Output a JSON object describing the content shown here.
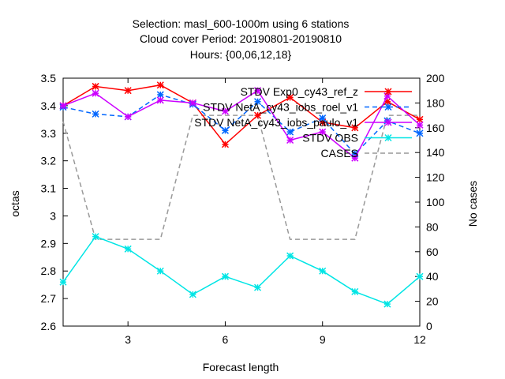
{
  "chart_data": {
    "type": "line",
    "title": [
      "Selection: masl_600-1000m using     6 stations",
      "Cloud cover   Period: 20190801-20190810",
      "Hours: {00,06,12,18}"
    ],
    "xlabel": "Forecast length",
    "ylabel": "octas",
    "y2label": "No cases",
    "xlim": [
      1,
      12
    ],
    "ylim": [
      2.6,
      3.5
    ],
    "y2lim": [
      0,
      200
    ],
    "xticks": [
      3,
      6,
      9,
      12
    ],
    "yticks": [
      2.6,
      2.7,
      2.8,
      2.9,
      3,
      3.1,
      3.2,
      3.3,
      3.4,
      3.5
    ],
    "y2ticks": [
      0,
      20,
      40,
      60,
      80,
      100,
      120,
      140,
      160,
      180,
      200
    ],
    "legend_position": "top-right",
    "series": [
      {
        "name": "STDV Exp0_cy43_ref_z",
        "axis": "y",
        "color": "#ff0000",
        "dash": "solid",
        "marker": "star",
        "x": [
          1,
          2,
          3,
          4,
          5,
          6,
          7,
          8,
          9,
          10,
          11,
          12
        ],
        "values": [
          3.4,
          3.47,
          3.455,
          3.475,
          3.41,
          3.26,
          3.365,
          3.43,
          3.34,
          3.32,
          3.415,
          3.35
        ]
      },
      {
        "name": "STDV NetA_cy43_iobs_roel_v1",
        "axis": "y",
        "color": "#0066ff",
        "dash": "dashed",
        "marker": "star",
        "x": [
          1,
          2,
          3,
          4,
          5,
          6,
          7,
          8,
          9,
          10,
          11,
          12
        ],
        "values": [
          3.395,
          3.37,
          3.36,
          3.44,
          3.405,
          3.31,
          3.415,
          3.305,
          3.355,
          3.225,
          3.345,
          3.3
        ]
      },
      {
        "name": "STDV NetA_cy43_iobs_paulo_v1",
        "axis": "y",
        "color": "#cc00ff",
        "dash": "solid",
        "marker": "star",
        "x": [
          1,
          2,
          3,
          4,
          5,
          6,
          7,
          8,
          9,
          10,
          11,
          12
        ],
        "values": [
          3.4,
          3.445,
          3.36,
          3.42,
          3.41,
          3.38,
          3.455,
          3.275,
          3.305,
          3.21,
          3.435,
          3.33
        ]
      },
      {
        "name": "STDV OBS",
        "axis": "y",
        "color": "#00e5e5",
        "dash": "solid",
        "marker": "star",
        "x": [
          1,
          2,
          3,
          4,
          5,
          6,
          7,
          8,
          9,
          10,
          11,
          12
        ],
        "values": [
          2.76,
          2.925,
          2.88,
          2.8,
          2.715,
          2.78,
          2.74,
          2.855,
          2.8,
          2.725,
          2.68,
          2.78
        ]
      },
      {
        "name": "CASES",
        "axis": "y2",
        "color": "#999999",
        "dash": "dashed",
        "marker": "none",
        "x": [
          1,
          2,
          3,
          4,
          5,
          6,
          7,
          8,
          9,
          10,
          11,
          12
        ],
        "values": [
          165,
          70,
          70,
          70,
          170,
          170,
          170,
          70,
          70,
          70,
          170,
          170
        ]
      }
    ]
  }
}
